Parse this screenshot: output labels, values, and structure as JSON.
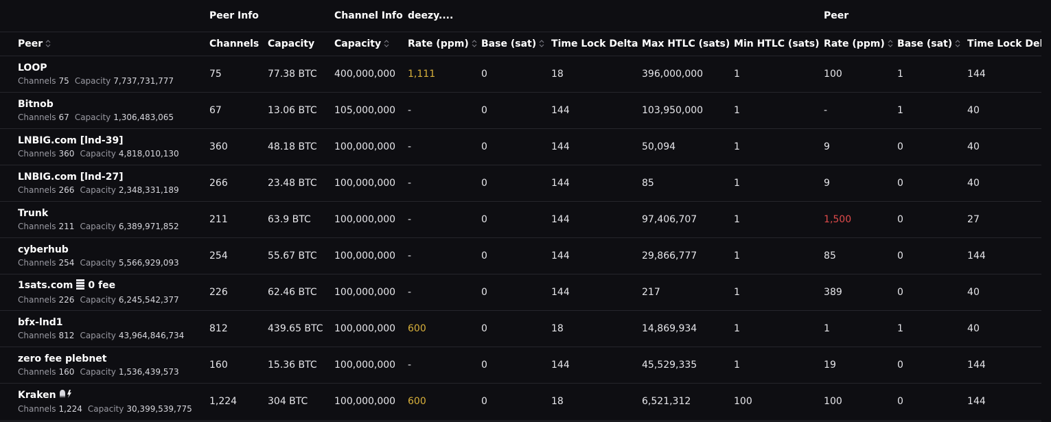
{
  "groups": {
    "peer_info": "Peer Info",
    "channel_info": "Channel Info",
    "local_alias": "deezy....",
    "remote": "Peer"
  },
  "columns": {
    "peer": "Peer",
    "channels": "Channels",
    "capacity": "Capacity",
    "ch_capacity": "Capacity",
    "rate": "Rate (ppm)",
    "base": "Base (sat)",
    "tld": "Time Lock Delta",
    "max_htlc": "Max HTLC (sats)",
    "min_htlc": "Min HTLC (sats)",
    "p_rate": "Rate (ppm)",
    "p_base": "Base (sat)",
    "p_tld": "Time Lock Delta"
  },
  "sub_labels": {
    "channels": "Channels",
    "capacity": "Capacity"
  },
  "colors": {
    "warn": "#d9b13b",
    "danger": "#e04b4b"
  },
  "rows": [
    {
      "name": "LOOP",
      "sub_channels": "75",
      "sub_capacity": "7,737,731,777",
      "channels": "75",
      "capacity": "77.38 BTC",
      "ch_capacity": "400,000,000",
      "rate": "1,111",
      "rate_color": "warn",
      "base": "0",
      "tld": "18",
      "max_htlc": "396,000,000",
      "min_htlc": "1",
      "p_rate": "100",
      "p_rate_color": "",
      "p_base": "1",
      "p_tld": "144"
    },
    {
      "name": "Bitnob",
      "sub_channels": "67",
      "sub_capacity": "1,306,483,065",
      "channels": "67",
      "capacity": "13.06 BTC",
      "ch_capacity": "105,000,000",
      "rate": "-",
      "rate_color": "",
      "base": "0",
      "tld": "144",
      "max_htlc": "103,950,000",
      "min_htlc": "1",
      "p_rate": "-",
      "p_rate_color": "",
      "p_base": "1",
      "p_tld": "40"
    },
    {
      "name": "LNBIG.com [lnd-39]",
      "sub_channels": "360",
      "sub_capacity": "4,818,010,130",
      "channels": "360",
      "capacity": "48.18 BTC",
      "ch_capacity": "100,000,000",
      "rate": "-",
      "rate_color": "",
      "base": "0",
      "tld": "144",
      "max_htlc": "50,094",
      "min_htlc": "1",
      "p_rate": "9",
      "p_rate_color": "",
      "p_base": "0",
      "p_tld": "40"
    },
    {
      "name": "LNBIG.com [lnd-27]",
      "sub_channels": "266",
      "sub_capacity": "2,348,331,189",
      "channels": "266",
      "capacity": "23.48 BTC",
      "ch_capacity": "100,000,000",
      "rate": "-",
      "rate_color": "",
      "base": "0",
      "tld": "144",
      "max_htlc": "85",
      "min_htlc": "1",
      "p_rate": "9",
      "p_rate_color": "",
      "p_base": "0",
      "p_tld": "40"
    },
    {
      "name": "Trunk",
      "sub_channels": "211",
      "sub_capacity": "6,389,971,852",
      "channels": "211",
      "capacity": "63.9 BTC",
      "ch_capacity": "100,000,000",
      "rate": "-",
      "rate_color": "",
      "base": "0",
      "tld": "144",
      "max_htlc": "97,406,707",
      "min_htlc": "1",
      "p_rate": "1,500",
      "p_rate_color": "danger",
      "p_base": "0",
      "p_tld": "27"
    },
    {
      "name": "cyberhub",
      "sub_channels": "254",
      "sub_capacity": "5,566,929,093",
      "channels": "254",
      "capacity": "55.67 BTC",
      "ch_capacity": "100,000,000",
      "rate": "-",
      "rate_color": "",
      "base": "0",
      "tld": "144",
      "max_htlc": "29,866,777",
      "min_htlc": "1",
      "p_rate": "85",
      "p_rate_color": "",
      "p_base": "0",
      "p_tld": "144"
    },
    {
      "name": "1sats.com",
      "name_suffix": "0 fee",
      "has_icon": "stack",
      "sub_channels": "226",
      "sub_capacity": "6,245,542,377",
      "channels": "226",
      "capacity": "62.46 BTC",
      "ch_capacity": "100,000,000",
      "rate": "-",
      "rate_color": "",
      "base": "0",
      "tld": "144",
      "max_htlc": "217",
      "min_htlc": "1",
      "p_rate": "389",
      "p_rate_color": "",
      "p_base": "0",
      "p_tld": "40"
    },
    {
      "name": "bfx-lnd1",
      "sub_channels": "812",
      "sub_capacity": "43,964,846,734",
      "channels": "812",
      "capacity": "439.65 BTC",
      "ch_capacity": "100,000,000",
      "rate": "600",
      "rate_color": "warn",
      "base": "0",
      "tld": "18",
      "max_htlc": "14,869,934",
      "min_htlc": "1",
      "p_rate": "1",
      "p_rate_color": "",
      "p_base": "1",
      "p_tld": "40"
    },
    {
      "name": "zero fee plebnet",
      "sub_channels": "160",
      "sub_capacity": "1,536,439,573",
      "channels": "160",
      "capacity": "15.36 BTC",
      "ch_capacity": "100,000,000",
      "rate": "-",
      "rate_color": "",
      "base": "0",
      "tld": "144",
      "max_htlc": "45,529,335",
      "min_htlc": "1",
      "p_rate": "19",
      "p_rate_color": "",
      "p_base": "0",
      "p_tld": "144"
    },
    {
      "name": "Kraken",
      "has_icon": "kraken",
      "sub_channels": "1,224",
      "sub_capacity": "30,399,539,775",
      "channels": "1,224",
      "capacity": "304 BTC",
      "ch_capacity": "100,000,000",
      "rate": "600",
      "rate_color": "warn",
      "base": "0",
      "tld": "18",
      "max_htlc": "6,521,312",
      "min_htlc": "100",
      "p_rate": "100",
      "p_rate_color": "",
      "p_base": "0",
      "p_tld": "144"
    }
  ]
}
